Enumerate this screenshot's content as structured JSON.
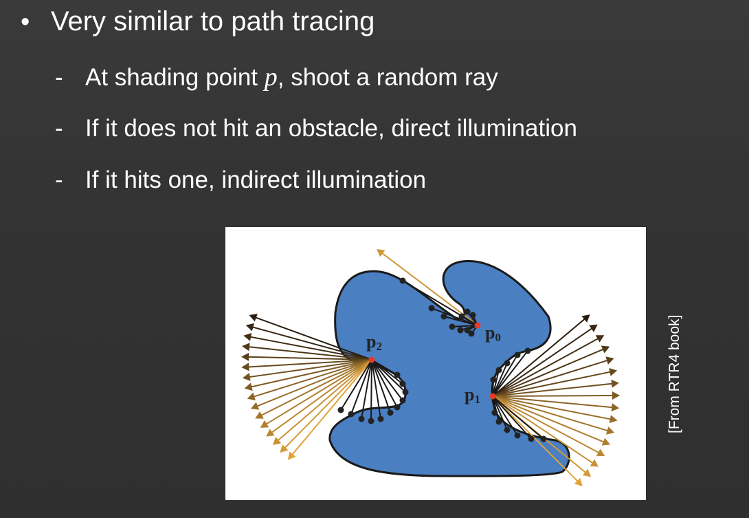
{
  "bullet": {
    "marker": "•",
    "text": "Very similar to path tracing"
  },
  "sub_bullets": [
    {
      "marker": "-",
      "before": "At shading point ",
      "variable": "p",
      "after": ", shoot a random ray"
    },
    {
      "marker": "-",
      "before": "If it does not hit an obstacle, direct illumination",
      "variable": "",
      "after": ""
    },
    {
      "marker": "-",
      "before": "If it hits one, indirect illumination",
      "variable": "",
      "after": ""
    }
  ],
  "figure": {
    "points": [
      {
        "name": "p",
        "sub": "0"
      },
      {
        "name": "p",
        "sub": "1"
      },
      {
        "name": "p",
        "sub": "2"
      }
    ],
    "colors": {
      "shape_fill": "#4a7fc1",
      "shape_stroke": "#1a1a1a",
      "ray_dark": "#2a1d10",
      "ray_light": "#e0a33a",
      "sample_dot": "#222222",
      "shading_point": "#e53a2a"
    }
  },
  "credit": "[From RTR4 book]"
}
